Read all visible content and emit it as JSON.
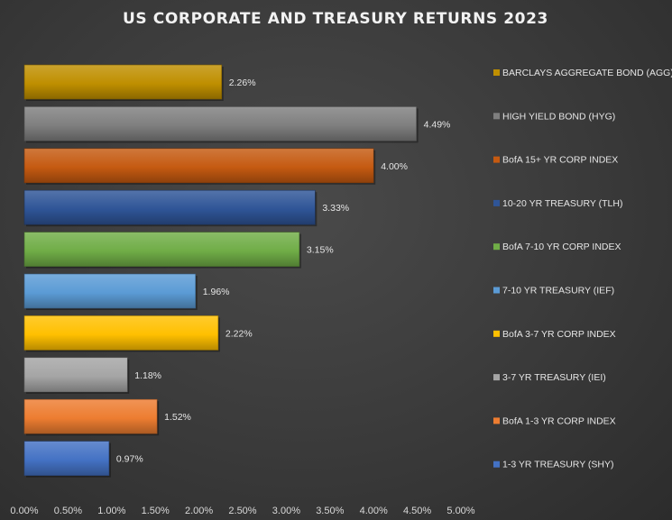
{
  "chart_data": {
    "type": "bar",
    "orientation": "horizontal",
    "title": "US CORPORATE AND TREASURY RETURNS 2023",
    "xlabel": "",
    "ylabel": "",
    "xlim": [
      0,
      5
    ],
    "x_ticks": [
      "0.00%",
      "0.50%",
      "1.00%",
      "1.50%",
      "2.00%",
      "2.50%",
      "3.00%",
      "3.50%",
      "4.00%",
      "4.50%",
      "5.00%"
    ],
    "grid": false,
    "legend_position": "right",
    "series": [
      {
        "name": "BARCLAYS AGGREGATE BOND (AGG)",
        "value": 2.26,
        "label": "2.26%",
        "color": "#bf8f00"
      },
      {
        "name": "HIGH YIELD BOND (HYG)",
        "value": 4.49,
        "label": "4.49%",
        "color": "#7f7f7f"
      },
      {
        "name": "BofA 15+ YR CORP INDEX",
        "value": 4.0,
        "label": "4.00%",
        "color": "#c55a11"
      },
      {
        "name": "10-20 YR TREASURY (TLH)",
        "value": 3.33,
        "label": "3.33%",
        "color": "#2f5597"
      },
      {
        "name": "BofA 7-10 YR CORP INDEX",
        "value": 3.15,
        "label": "3.15%",
        "color": "#70ad47"
      },
      {
        "name": "7-10 YR TREASURY (IEF)",
        "value": 1.96,
        "label": "1.96%",
        "color": "#5b9bd5"
      },
      {
        "name": "BofA 3-7 YR CORP INDEX",
        "value": 2.22,
        "label": "2.22%",
        "color": "#ffc000"
      },
      {
        "name": "3-7 YR TREASURY (IEI)",
        "value": 1.18,
        "label": "1.18%",
        "color": "#a5a5a5"
      },
      {
        "name": "BofA 1-3 YR CORP INDEX",
        "value": 1.52,
        "label": "1.52%",
        "color": "#ed7d31"
      },
      {
        "name": "1-3 YR TREASURY (SHY)",
        "value": 0.97,
        "label": "0.97%",
        "color": "#4472c4"
      }
    ]
  }
}
